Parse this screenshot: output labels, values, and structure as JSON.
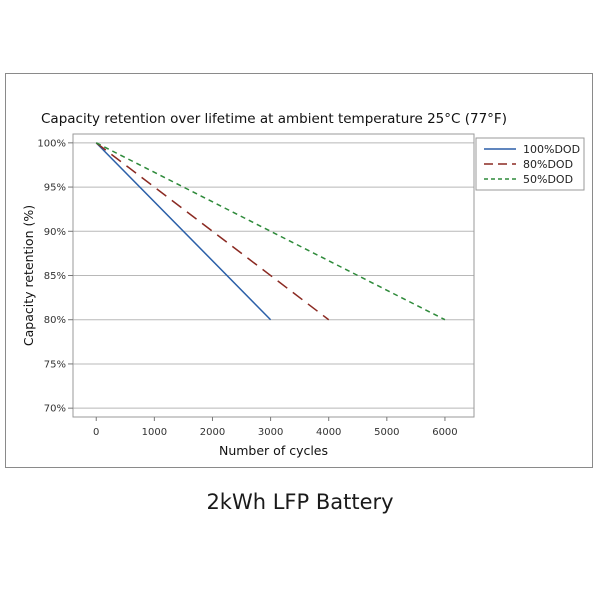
{
  "caption": "2kWh LFP Battery",
  "chart_data": {
    "type": "line",
    "title": "Capacity retention over lifetime at ambient temperature 25°C (77°F)",
    "xlabel": "Number of cycles",
    "ylabel": "Capacity retention (%)",
    "xlim": [
      -400,
      6500
    ],
    "ylim": [
      69,
      101
    ],
    "xticks": [
      0,
      1000,
      2000,
      3000,
      4000,
      5000,
      6000
    ],
    "yticks": [
      70,
      75,
      80,
      85,
      90,
      95,
      100
    ],
    "ytick_suffix": "%",
    "grid": "horizontal",
    "legend_position": "top-right",
    "series": [
      {
        "name": "100%DOD",
        "color": "#2b5fa8",
        "style": "solid",
        "x": [
          0,
          3000
        ],
        "y": [
          100,
          80
        ]
      },
      {
        "name": "80%DOD",
        "color": "#8b2a22",
        "style": "dashed",
        "x": [
          0,
          4000
        ],
        "y": [
          100,
          80
        ]
      },
      {
        "name": "50%DOD",
        "color": "#2e8a3a",
        "style": "dotted",
        "x": [
          0,
          6000
        ],
        "y": [
          100,
          80
        ]
      }
    ]
  }
}
